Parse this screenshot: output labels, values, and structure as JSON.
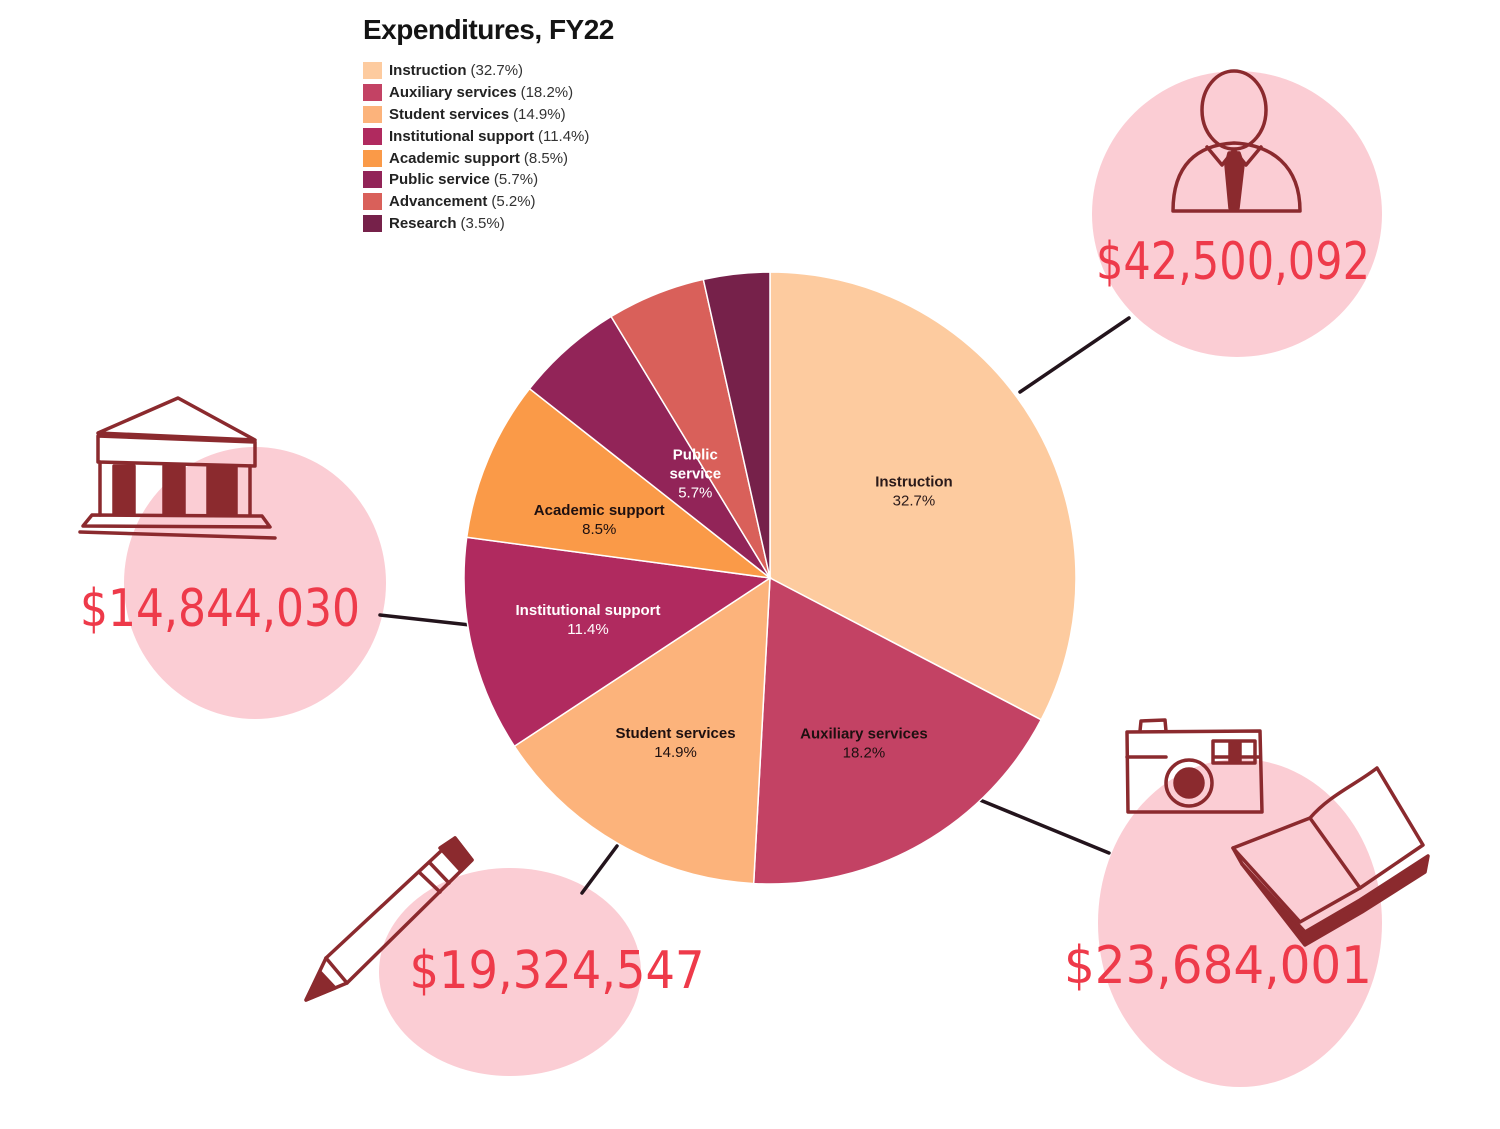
{
  "chart_data": {
    "type": "pie",
    "title": "Expenditures, FY22",
    "slices": [
      {
        "name": "Instruction",
        "value": 32.7,
        "legend_pct": "(32.7%)",
        "slice_label_lines": [
          "Instruction"
        ],
        "pct_label": "32.7%",
        "color": "#fdcb9f",
        "text_color": "#2a1a1a"
      },
      {
        "name": "Auxiliary services",
        "value": 18.2,
        "legend_pct": "(18.2%)",
        "slice_label_lines": [
          "Auxiliary services"
        ],
        "pct_label": "18.2%",
        "color": "#c34264",
        "text_color": "#1e1010"
      },
      {
        "name": "Student services",
        "value": 14.9,
        "legend_pct": "(14.9%)",
        "slice_label_lines": [
          "Student services"
        ],
        "pct_label": "14.9%",
        "color": "#fcb37b",
        "text_color": "#1e1010"
      },
      {
        "name": "Institutional support",
        "value": 11.4,
        "legend_pct": "(11.4%)",
        "slice_label_lines": [
          "Institutional support"
        ],
        "pct_label": "11.4%",
        "color": "#b02a5f",
        "text_color": "#ffffff"
      },
      {
        "name": "Academic support",
        "value": 8.5,
        "legend_pct": "(8.5%)",
        "slice_label_lines": [
          "Academic support"
        ],
        "pct_label": "8.5%",
        "color": "#fa9a48",
        "text_color": "#1e1010"
      },
      {
        "name": "Public service",
        "value": 5.7,
        "legend_pct": "(5.7%)",
        "slice_label_lines": [
          "Public",
          "service"
        ],
        "pct_label": "5.7%",
        "color": "#922458",
        "text_color": "#ffffff"
      },
      {
        "name": "Advancement",
        "value": 5.2,
        "legend_pct": "(5.2%)",
        "slice_label_lines": [],
        "pct_label": "",
        "color": "#d9605a",
        "text_color": "#ffffff"
      },
      {
        "name": "Research",
        "value": 3.5,
        "legend_pct": "(3.5%)",
        "slice_label_lines": [],
        "pct_label": "",
        "color": "#76214a",
        "text_color": "#ffffff"
      }
    ],
    "legend_position": "top-left",
    "start_angle_deg": 0,
    "direction": "clockwise"
  },
  "callouts": [
    {
      "id": "instruction",
      "amount": "$42,500,092",
      "icon": "person-icon"
    },
    {
      "id": "auxiliary",
      "amount": "$23,684,001",
      "icon": "camera-book-icon"
    },
    {
      "id": "student",
      "amount": "$19,324,547",
      "icon": "pencil-icon"
    },
    {
      "id": "institutional",
      "amount": "$14,844,030",
      "icon": "bank-icon"
    }
  ],
  "colors": {
    "bubble": "#fbcdd4",
    "amount_text": "#ee3a4a",
    "icon_stroke": "#8b2a2e",
    "connector": "#23141c"
  }
}
